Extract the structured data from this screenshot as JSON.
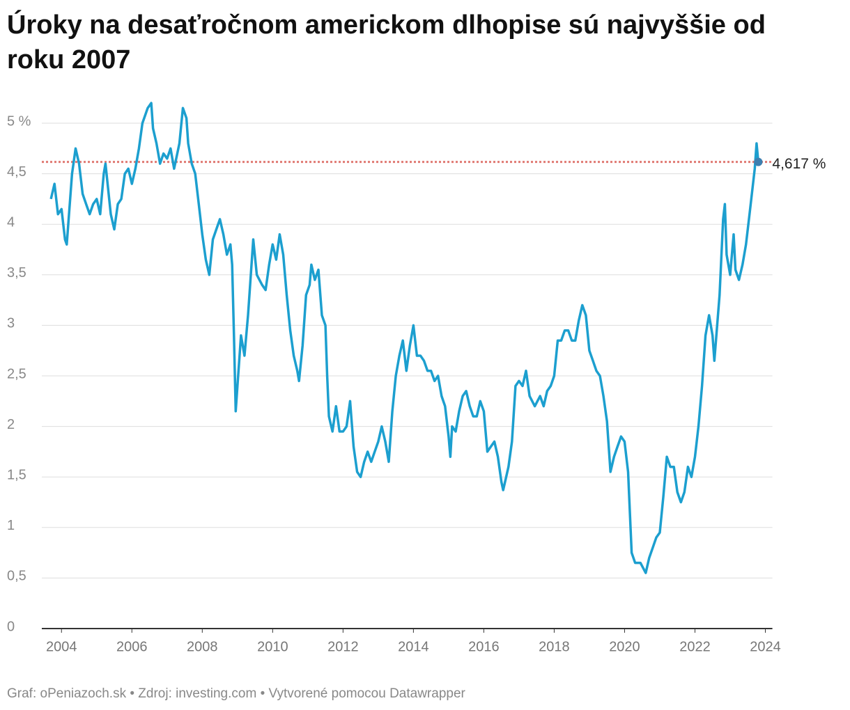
{
  "chart_data": {
    "type": "line",
    "title_lines": [
      "Úroky na desaťročnom americkom dlhopise sú najvyššie od",
      "roku 2007"
    ],
    "footer": "Graf: oPeniazoch.sk • Zdroj: investing.com • Vytvorené pomocou Datawrapper",
    "xlim": [
      2003.5,
      2024.2
    ],
    "xticks": [
      2004,
      2006,
      2008,
      2010,
      2012,
      2014,
      2016,
      2018,
      2020,
      2022,
      2024
    ],
    "ylim": [
      0,
      5.25
    ],
    "yticks": [
      0,
      {
        "value": 0.5,
        "label": "0,5"
      },
      1,
      {
        "value": 1.5,
        "label": "1,5"
      },
      2,
      {
        "value": 2.5,
        "label": "2,5"
      },
      3,
      {
        "value": 3.5,
        "label": "3,5"
      },
      4,
      {
        "value": 4.5,
        "label": "4,5"
      },
      {
        "value": 5,
        "label": "5 %"
      }
    ],
    "grid": true,
    "reference_line": {
      "value": 4.617,
      "label": "4,617 %",
      "color": "#e07a73"
    },
    "series": [
      {
        "color": "#1c9fcf",
        "x": [
          2003.7,
          2003.8,
          2003.9,
          2004.0,
          2004.1,
          2004.15,
          2004.3,
          2004.4,
          2004.5,
          2004.6,
          2004.7,
          2004.8,
          2004.9,
          2005.0,
          2005.1,
          2005.2,
          2005.25,
          2005.4,
          2005.5,
          2005.6,
          2005.7,
          2005.8,
          2005.9,
          2006.0,
          2006.1,
          2006.2,
          2006.3,
          2006.45,
          2006.55,
          2006.6,
          2006.7,
          2006.8,
          2006.9,
          2007.0,
          2007.1,
          2007.2,
          2007.35,
          2007.45,
          2007.55,
          2007.6,
          2007.7,
          2007.8,
          2007.9,
          2008.0,
          2008.1,
          2008.2,
          2008.3,
          2008.4,
          2008.5,
          2008.6,
          2008.7,
          2008.8,
          2008.85,
          2008.9,
          2008.95,
          2009.0,
          2009.1,
          2009.2,
          2009.3,
          2009.4,
          2009.45,
          2009.55,
          2009.7,
          2009.8,
          2009.9,
          2010.0,
          2010.1,
          2010.2,
          2010.3,
          2010.4,
          2010.5,
          2010.6,
          2010.7,
          2010.75,
          2010.85,
          2010.95,
          2011.05,
          2011.1,
          2011.2,
          2011.3,
          2011.4,
          2011.5,
          2011.55,
          2011.6,
          2011.7,
          2011.8,
          2011.9,
          2012.0,
          2012.1,
          2012.2,
          2012.3,
          2012.4,
          2012.5,
          2012.6,
          2012.7,
          2012.8,
          2012.9,
          2013.0,
          2013.1,
          2013.2,
          2013.3,
          2013.4,
          2013.5,
          2013.6,
          2013.7,
          2013.8,
          2013.9,
          2014.0,
          2014.1,
          2014.2,
          2014.3,
          2014.4,
          2014.5,
          2014.6,
          2014.7,
          2014.8,
          2014.9,
          2015.0,
          2015.05,
          2015.1,
          2015.2,
          2015.3,
          2015.4,
          2015.5,
          2015.6,
          2015.7,
          2015.8,
          2015.9,
          2016.0,
          2016.1,
          2016.2,
          2016.3,
          2016.4,
          2016.5,
          2016.55,
          2016.7,
          2016.8,
          2016.9,
          2017.0,
          2017.1,
          2017.2,
          2017.3,
          2017.45,
          2017.6,
          2017.7,
          2017.8,
          2017.9,
          2018.0,
          2018.1,
          2018.2,
          2018.3,
          2018.4,
          2018.5,
          2018.6,
          2018.7,
          2018.8,
          2018.9,
          2019.0,
          2019.1,
          2019.2,
          2019.3,
          2019.4,
          2019.5,
          2019.6,
          2019.7,
          2019.8,
          2019.9,
          2020.0,
          2020.1,
          2020.2,
          2020.3,
          2020.45,
          2020.6,
          2020.7,
          2020.8,
          2020.9,
          2021.0,
          2021.1,
          2021.2,
          2021.3,
          2021.4,
          2021.5,
          2021.6,
          2021.7,
          2021.8,
          2021.9,
          2022.0,
          2022.1,
          2022.2,
          2022.3,
          2022.4,
          2022.5,
          2022.55,
          2022.7,
          2022.8,
          2022.85,
          2022.9,
          2023.0,
          2023.1,
          2023.15,
          2023.25,
          2023.35,
          2023.45,
          2023.55,
          2023.6,
          2023.7,
          2023.75,
          2023.8
        ],
        "values": [
          4.25,
          4.4,
          4.1,
          4.15,
          3.85,
          3.8,
          4.5,
          4.75,
          4.6,
          4.3,
          4.2,
          4.1,
          4.2,
          4.25,
          4.1,
          4.5,
          4.6,
          4.1,
          3.95,
          4.2,
          4.25,
          4.5,
          4.55,
          4.4,
          4.55,
          4.75,
          5.0,
          5.15,
          5.2,
          4.95,
          4.8,
          4.6,
          4.7,
          4.65,
          4.75,
          4.55,
          4.8,
          5.15,
          5.05,
          4.8,
          4.6,
          4.5,
          4.2,
          3.9,
          3.65,
          3.5,
          3.85,
          3.95,
          4.05,
          3.9,
          3.7,
          3.8,
          3.6,
          2.9,
          2.15,
          2.4,
          2.9,
          2.7,
          3.1,
          3.6,
          3.85,
          3.5,
          3.4,
          3.35,
          3.6,
          3.8,
          3.65,
          3.9,
          3.7,
          3.3,
          2.95,
          2.7,
          2.55,
          2.45,
          2.8,
          3.3,
          3.4,
          3.6,
          3.45,
          3.55,
          3.1,
          3.0,
          2.5,
          2.1,
          1.95,
          2.2,
          1.95,
          1.95,
          2.0,
          2.25,
          1.8,
          1.55,
          1.5,
          1.65,
          1.75,
          1.65,
          1.75,
          1.85,
          2.0,
          1.85,
          1.65,
          2.15,
          2.5,
          2.7,
          2.85,
          2.55,
          2.8,
          3.0,
          2.7,
          2.7,
          2.65,
          2.55,
          2.55,
          2.45,
          2.5,
          2.3,
          2.2,
          1.9,
          1.7,
          2.0,
          1.95,
          2.15,
          2.3,
          2.35,
          2.2,
          2.1,
          2.1,
          2.25,
          2.15,
          1.75,
          1.8,
          1.85,
          1.7,
          1.45,
          1.37,
          1.6,
          1.85,
          2.4,
          2.45,
          2.4,
          2.55,
          2.3,
          2.2,
          2.3,
          2.2,
          2.35,
          2.4,
          2.5,
          2.85,
          2.85,
          2.95,
          2.95,
          2.85,
          2.85,
          3.05,
          3.2,
          3.1,
          2.75,
          2.65,
          2.55,
          2.5,
          2.3,
          2.05,
          1.55,
          1.7,
          1.8,
          1.9,
          1.85,
          1.55,
          0.75,
          0.65,
          0.65,
          0.55,
          0.7,
          0.8,
          0.9,
          0.95,
          1.3,
          1.7,
          1.6,
          1.6,
          1.35,
          1.25,
          1.35,
          1.6,
          1.5,
          1.7,
          2.0,
          2.4,
          2.9,
          3.1,
          2.9,
          2.65,
          3.3,
          4.05,
          4.2,
          3.7,
          3.5,
          3.9,
          3.55,
          3.45,
          3.6,
          3.8,
          4.1,
          4.25,
          4.55,
          4.8,
          4.617
        ]
      }
    ]
  }
}
